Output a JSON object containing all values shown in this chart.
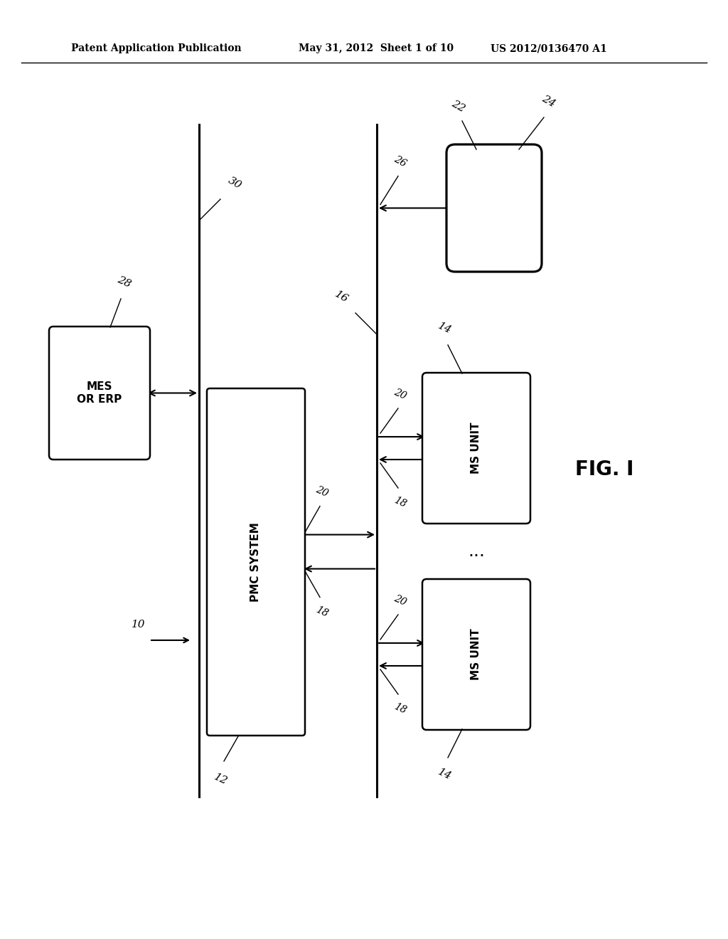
{
  "header_left": "Patent Application Publication",
  "header_mid": "May 31, 2012  Sheet 1 of 10",
  "header_right": "US 2012/0136470 A1",
  "fig_label": "FIG. I",
  "bg_color": "#ffffff"
}
